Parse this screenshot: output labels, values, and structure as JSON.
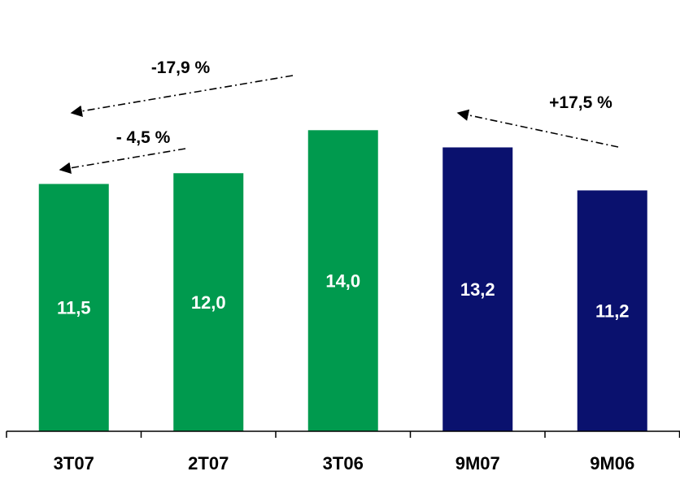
{
  "chart_data": {
    "type": "bar",
    "categories": [
      "3T07",
      "2T07",
      "3T06",
      "9M07",
      "9M06"
    ],
    "values": [
      11.5,
      12.0,
      14.0,
      13.2,
      11.2
    ],
    "value_labels": [
      "11,5",
      "12,0",
      "14,0",
      "13,2",
      "11,2"
    ],
    "bar_colors": [
      "#009a4e",
      "#009a4e",
      "#009a4e",
      "#0a116e",
      "#0a116e"
    ],
    "value_label_color": "#ffffff",
    "ylim": [
      0,
      14.2
    ],
    "grid": false,
    "title": "",
    "xlabel": "",
    "ylabel": "",
    "annotations": [
      {
        "text": "-17,9 %",
        "from_category": "3T06",
        "to_category": "3T07"
      },
      {
        "text": "- 4,5 %",
        "from_category": "2T07",
        "to_category": "3T07"
      },
      {
        "text": "+17,5 %",
        "from_category": "9M06",
        "to_category": "9M07"
      }
    ]
  }
}
